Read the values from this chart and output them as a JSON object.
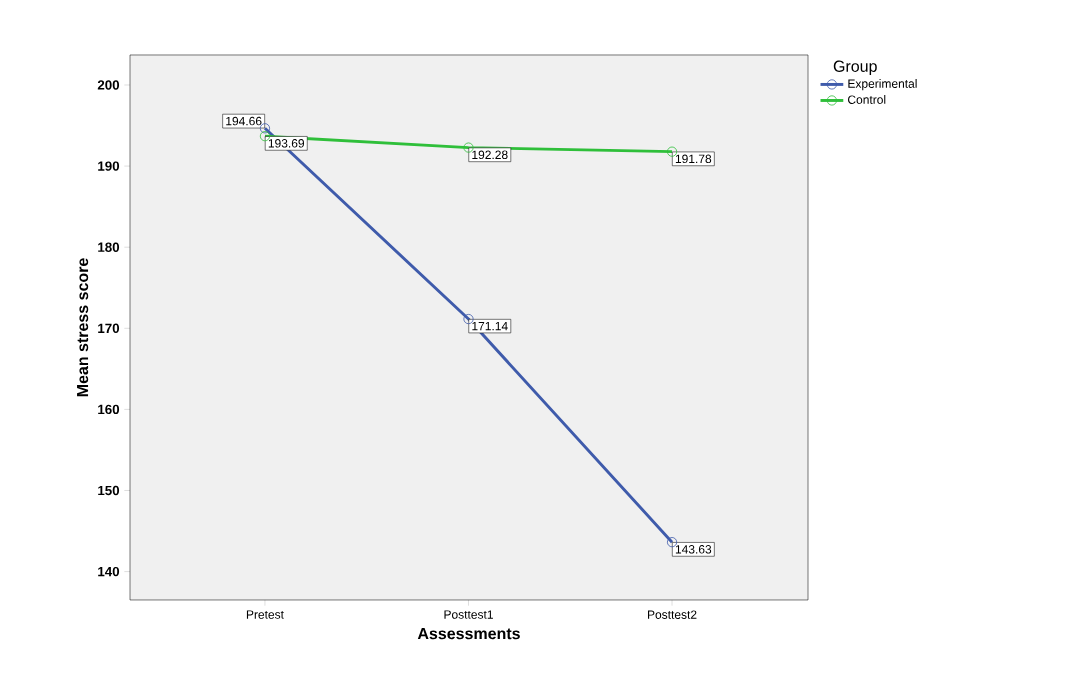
{
  "chart_data": {
    "type": "line",
    "xlabel": "Assessments",
    "ylabel": "Mean stress score",
    "legend_title": "Group",
    "categories": [
      "Pretest",
      "Posttest1",
      "Posttest2"
    ],
    "series": [
      {
        "name": "Experimental",
        "color": "#3f5bab",
        "values": [
          194.66,
          171.14,
          143.63
        ]
      },
      {
        "name": "Control",
        "color": "#2fbf3a",
        "values": [
          193.69,
          192.28,
          191.78
        ]
      }
    ],
    "ylim": [
      136.5,
      203.7
    ],
    "yticks": [
      140,
      150,
      160,
      170,
      180,
      190,
      200
    ],
    "marker": "circle",
    "line_style": "solid",
    "legend": "top right",
    "data_labels": true,
    "grid": false
  }
}
